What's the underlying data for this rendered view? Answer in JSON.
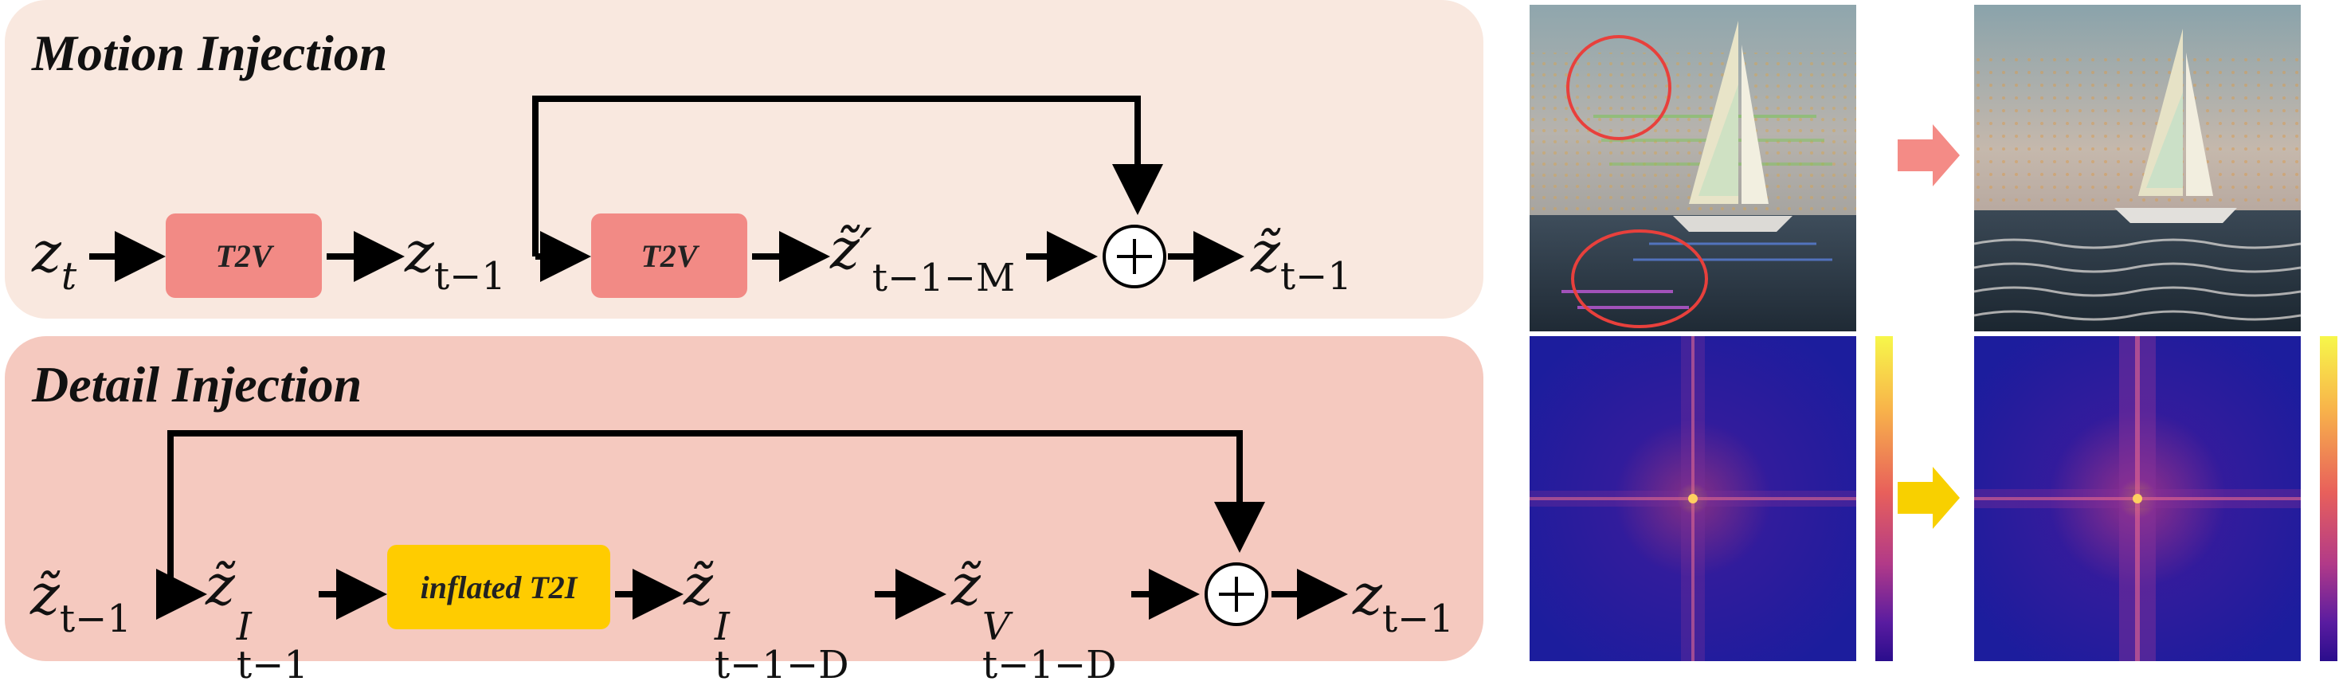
{
  "motion": {
    "title": "Motion Injection",
    "box1": "T2V",
    "box2": "T2V",
    "z_t": {
      "base": "z",
      "sub": "t"
    },
    "z_t1": {
      "base": "z",
      "sub": "t−1"
    },
    "zt_prime": {
      "base": "z̃′",
      "sub": "t−1−M"
    },
    "zt_out": {
      "base": "z̃",
      "sub": "t−1"
    }
  },
  "detail": {
    "title": "Detail Injection",
    "box": "inflated T2I",
    "zt_in": {
      "base": "z̃",
      "sub": "t−1"
    },
    "zI": {
      "base": "z̃",
      "sup": "I",
      "sub": "t−1"
    },
    "zID": {
      "base": "z̃",
      "sup": "I",
      "sub": "t−1−D"
    },
    "zVD": {
      "base": "z̃",
      "sup": "V",
      "sub": "t−1−D"
    },
    "z_out": {
      "base": "z",
      "sub": "t−1"
    }
  },
  "colors": {
    "motion_panel": "#f9e8df",
    "detail_panel": "#f5c9bf",
    "t2v_box": "#f28a85",
    "t2i_box": "#ffcc00",
    "arrow_pink": "#f48b86",
    "arrow_yellow": "#f8d000"
  },
  "icons": {
    "sum": "circled-plus-icon",
    "photo_before": "sailboat-flow-before",
    "photo_after": "sailboat-flow-after",
    "spectrum": "frequency-spectrum"
  }
}
